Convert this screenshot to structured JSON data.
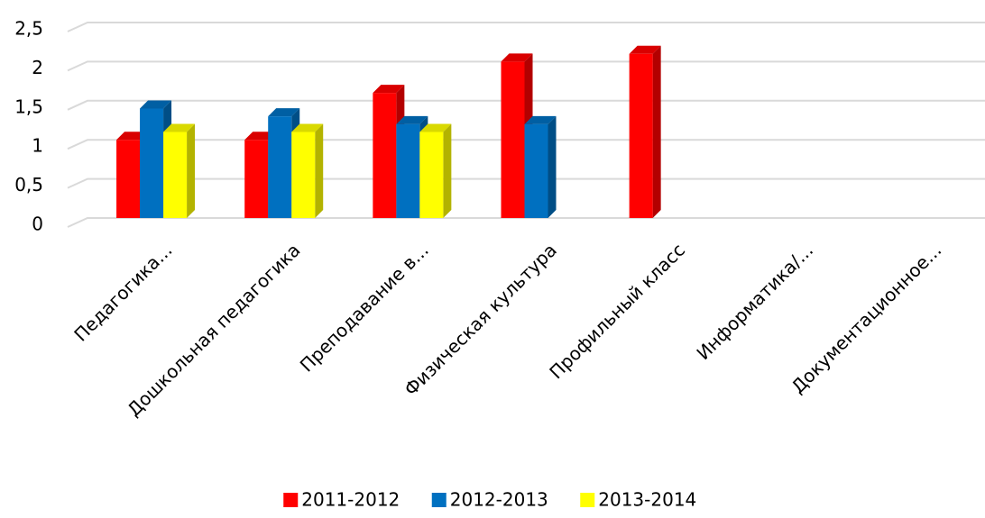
{
  "chart_data": {
    "type": "bar3d",
    "categories": [
      "Педагогика...",
      "Дошкольная педагогика",
      "Преподавание в...",
      "Физическая культура",
      "Профильный класс",
      "Информатика/...",
      "Документационное..."
    ],
    "series": [
      {
        "name": "2011-2012",
        "color": "#ff0000",
        "values": [
          1,
          1,
          1.6,
          2,
          2.1,
          null,
          null
        ]
      },
      {
        "name": "2012-2013",
        "color": "#0070c0",
        "values": [
          1.4,
          1.3,
          1.2,
          1.2,
          null,
          null,
          null
        ]
      },
      {
        "name": "2013-2014",
        "color": "#ffff00",
        "values": [
          1.1,
          1.1,
          1.1,
          null,
          null,
          null,
          null
        ]
      }
    ],
    "ylim": [
      0,
      2.5
    ],
    "yticks": [
      0,
      {
        "value": 0.5,
        "label": "0,5"
      },
      1,
      {
        "value": 1.5,
        "label": "1,5"
      },
      2,
      {
        "value": 2.5,
        "label": "2,5"
      }
    ],
    "grid": true,
    "legend": "bottom"
  }
}
